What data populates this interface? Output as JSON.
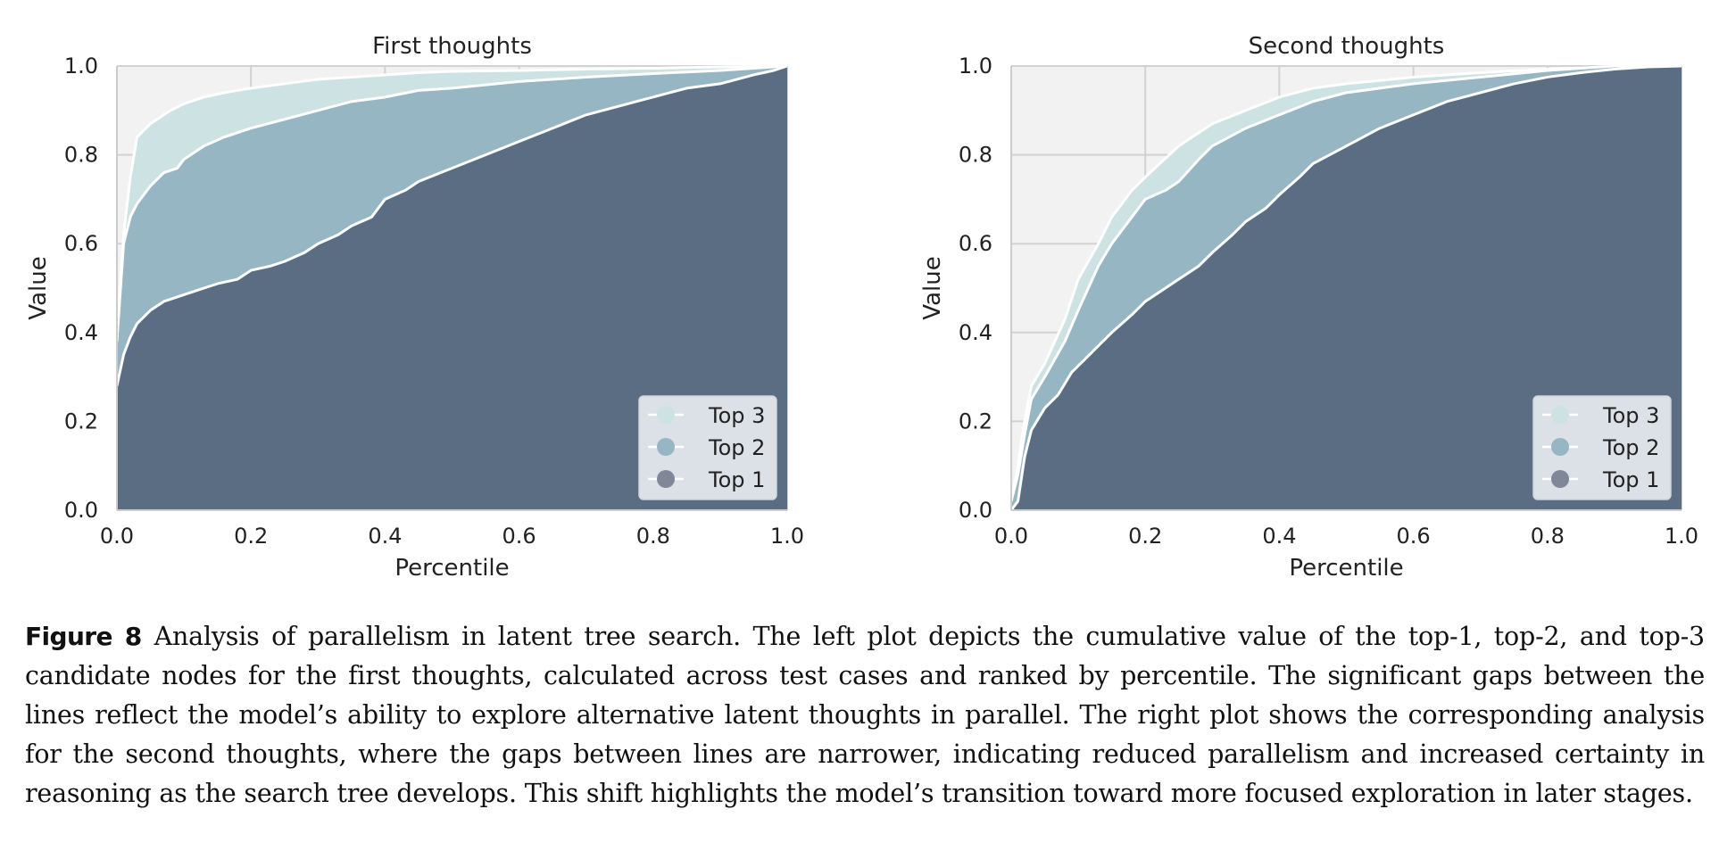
{
  "colors": {
    "top1": "#5b6d82",
    "top2": "#97b6c3",
    "top3": "#cde2e3",
    "plot_bg": "#f2f2f2",
    "grid": "#d2d2d2"
  },
  "chart_data": [
    {
      "type": "area",
      "title": "First thoughts",
      "xlabel": "Percentile",
      "ylabel": "Value",
      "xlim": [
        0,
        1
      ],
      "ylim": [
        0,
        1
      ],
      "xticks": [
        "0.0",
        "0.2",
        "0.4",
        "0.6",
        "0.8",
        "1.0"
      ],
      "yticks": [
        "0.0",
        "0.2",
        "0.4",
        "0.6",
        "0.8",
        "1.0"
      ],
      "grid": true,
      "legend_position": "lower-right",
      "series": [
        {
          "name": "Top 3",
          "x": [
            0,
            0.01,
            0.02,
            0.03,
            0.05,
            0.08,
            0.1,
            0.13,
            0.16,
            0.2,
            0.25,
            0.3,
            0.35,
            0.4,
            0.45,
            0.5,
            0.6,
            0.7,
            0.8,
            0.9,
            1.0
          ],
          "y": [
            0.4,
            0.62,
            0.75,
            0.84,
            0.87,
            0.9,
            0.915,
            0.93,
            0.94,
            0.95,
            0.96,
            0.97,
            0.975,
            0.98,
            0.985,
            0.988,
            0.99,
            0.993,
            0.995,
            0.998,
            1.0
          ]
        },
        {
          "name": "Top 2",
          "x": [
            0,
            0.01,
            0.02,
            0.03,
            0.04,
            0.05,
            0.07,
            0.09,
            0.1,
            0.13,
            0.16,
            0.2,
            0.25,
            0.3,
            0.35,
            0.4,
            0.45,
            0.5,
            0.6,
            0.7,
            0.8,
            0.9,
            0.95,
            1.0
          ],
          "y": [
            0.38,
            0.6,
            0.66,
            0.69,
            0.71,
            0.73,
            0.76,
            0.77,
            0.79,
            0.82,
            0.84,
            0.86,
            0.88,
            0.9,
            0.92,
            0.93,
            0.945,
            0.95,
            0.965,
            0.975,
            0.983,
            0.99,
            0.995,
            1.0
          ]
        },
        {
          "name": "Top 1",
          "x": [
            0,
            0.01,
            0.02,
            0.03,
            0.05,
            0.07,
            0.09,
            0.11,
            0.13,
            0.15,
            0.18,
            0.2,
            0.23,
            0.25,
            0.28,
            0.3,
            0.33,
            0.35,
            0.38,
            0.4,
            0.43,
            0.45,
            0.5,
            0.55,
            0.6,
            0.65,
            0.7,
            0.75,
            0.8,
            0.85,
            0.9,
            0.95,
            0.98,
            1.0
          ],
          "y": [
            0.28,
            0.35,
            0.39,
            0.42,
            0.45,
            0.47,
            0.48,
            0.49,
            0.5,
            0.51,
            0.52,
            0.54,
            0.55,
            0.56,
            0.58,
            0.6,
            0.62,
            0.64,
            0.66,
            0.7,
            0.72,
            0.74,
            0.77,
            0.8,
            0.83,
            0.86,
            0.89,
            0.91,
            0.93,
            0.95,
            0.96,
            0.98,
            0.99,
            1.0
          ]
        }
      ]
    },
    {
      "type": "area",
      "title": "Second thoughts",
      "xlabel": "Percentile",
      "ylabel": "Value",
      "xlim": [
        0,
        1
      ],
      "ylim": [
        0,
        1
      ],
      "xticks": [
        "0.0",
        "0.2",
        "0.4",
        "0.6",
        "0.8",
        "1.0"
      ],
      "yticks": [
        "0.0",
        "0.2",
        "0.4",
        "0.6",
        "0.8",
        "1.0"
      ],
      "grid": true,
      "legend_position": "lower-right",
      "series": [
        {
          "name": "Top 3",
          "x": [
            0,
            0.01,
            0.02,
            0.03,
            0.05,
            0.08,
            0.1,
            0.13,
            0.15,
            0.18,
            0.2,
            0.25,
            0.3,
            0.35,
            0.4,
            0.45,
            0.5,
            0.6,
            0.7,
            0.8,
            0.9,
            1.0
          ],
          "y": [
            0.02,
            0.1,
            0.2,
            0.28,
            0.33,
            0.43,
            0.52,
            0.6,
            0.66,
            0.72,
            0.75,
            0.82,
            0.87,
            0.9,
            0.93,
            0.95,
            0.96,
            0.975,
            0.985,
            0.993,
            0.998,
            1.0
          ]
        },
        {
          "name": "Top 2",
          "x": [
            0,
            0.01,
            0.02,
            0.03,
            0.05,
            0.08,
            0.1,
            0.13,
            0.15,
            0.18,
            0.2,
            0.23,
            0.25,
            0.28,
            0.3,
            0.35,
            0.4,
            0.45,
            0.5,
            0.6,
            0.7,
            0.8,
            0.85,
            0.9,
            1.0
          ],
          "y": [
            0.02,
            0.08,
            0.17,
            0.25,
            0.3,
            0.38,
            0.45,
            0.55,
            0.6,
            0.66,
            0.7,
            0.72,
            0.74,
            0.79,
            0.82,
            0.86,
            0.89,
            0.92,
            0.94,
            0.96,
            0.975,
            0.99,
            0.995,
            1.0,
            1.0
          ]
        },
        {
          "name": "Top 1",
          "x": [
            0,
            0.01,
            0.02,
            0.03,
            0.05,
            0.07,
            0.09,
            0.11,
            0.13,
            0.15,
            0.18,
            0.2,
            0.23,
            0.25,
            0.28,
            0.3,
            0.33,
            0.35,
            0.38,
            0.4,
            0.43,
            0.45,
            0.5,
            0.55,
            0.6,
            0.65,
            0.7,
            0.75,
            0.8,
            0.85,
            0.9,
            0.95,
            1.0
          ],
          "y": [
            0.0,
            0.02,
            0.12,
            0.18,
            0.23,
            0.26,
            0.31,
            0.34,
            0.37,
            0.4,
            0.44,
            0.47,
            0.5,
            0.52,
            0.55,
            0.58,
            0.62,
            0.65,
            0.68,
            0.71,
            0.75,
            0.78,
            0.82,
            0.86,
            0.89,
            0.92,
            0.94,
            0.96,
            0.975,
            0.985,
            0.993,
            0.998,
            1.0
          ]
        }
      ]
    }
  ],
  "caption": {
    "label": "Figure 8",
    "text": "Analysis of parallelism in latent tree search. The left plot depicts the cumulative value of the top-1, top-2, and top-3 candidate nodes for the first thoughts, calculated across test cases and ranked by percentile. The significant gaps between the lines reflect the model’s ability to explore alternative latent thoughts in parallel. The right plot shows the corresponding analysis for the second thoughts, where the gaps between lines are narrower, indicating reduced parallelism and increased certainty in reasoning as the search tree develops. This shift highlights the model’s transition toward more focused exploration in later stages."
  }
}
